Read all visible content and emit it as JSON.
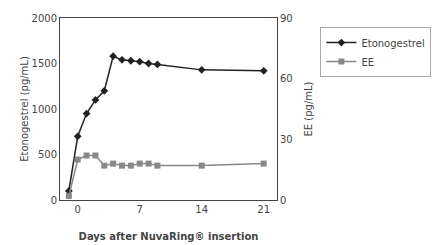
{
  "chart_data": {
    "type": "line",
    "x": [
      -1,
      0,
      1,
      2,
      3,
      4,
      5,
      6,
      7,
      8,
      9,
      14,
      21
    ],
    "series": [
      {
        "name": "Etonogestrel",
        "color": "#222222",
        "marker": "diamond",
        "values": [
          100,
          700,
          950,
          1100,
          1200,
          1580,
          1540,
          1530,
          1520,
          1500,
          1490,
          1430,
          1420
        ]
      },
      {
        "name": "EE",
        "color": "#888888",
        "marker": "square",
        "axis": "y2",
        "values": [
          2,
          20,
          22,
          22,
          17,
          18,
          17,
          17,
          18,
          18,
          17,
          17,
          18
        ]
      }
    ],
    "xlabel": "Days after NuvaRing® insertion",
    "ylabel": "Etonogestrel (pg/mL)",
    "y2label": "EE (pg/mL)",
    "xlim": [
      -2,
      22.5
    ],
    "xticks": [
      0,
      7,
      14,
      21
    ],
    "ylim": [
      0,
      2000
    ],
    "yticks": [
      0,
      500,
      1000,
      1500,
      2000
    ],
    "y2lim": [
      0,
      90
    ],
    "y2ticks": [
      0,
      30,
      60,
      90
    ],
    "grid": false,
    "legend": "right"
  }
}
